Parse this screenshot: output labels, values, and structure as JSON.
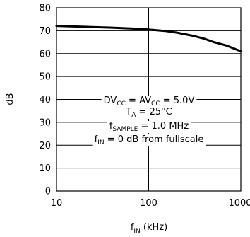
{
  "chart_data": {
    "type": "line",
    "xscale": "log",
    "xlim": [
      10,
      1000
    ],
    "ylim": [
      0,
      80
    ],
    "grid": true,
    "x_ticks": [
      "10",
      "100",
      "1000"
    ],
    "y_ticks": [
      "0",
      "10",
      "20",
      "30",
      "40",
      "50",
      "60",
      "70",
      "80"
    ],
    "xlabel": {
      "main": "f",
      "sub": "IN",
      "unit": " (kHz)"
    },
    "ylabel": "dB",
    "series": [
      {
        "x": [
          10,
          20,
          40,
          70,
          100,
          150,
          200,
          300,
          400,
          500,
          700,
          1000
        ],
        "y": [
          72.1,
          71.7,
          71.3,
          70.9,
          70.5,
          69.9,
          69.2,
          67.8,
          66.5,
          65.1,
          63.5,
          61.0
        ]
      }
    ],
    "annotations": [
      {
        "id": "dv",
        "parts": [
          {
            "t": "DV"
          },
          {
            "t": "CC",
            "sub": true
          },
          {
            "t": " = AV"
          },
          {
            "t": "CC",
            "sub": true
          },
          {
            "t": " = 5.0V"
          }
        ]
      },
      {
        "id": "ta",
        "parts": [
          {
            "t": "T"
          },
          {
            "t": "A",
            "sub": true
          },
          {
            "t": " = 25°C"
          }
        ]
      },
      {
        "id": "fs",
        "parts": [
          {
            "t": "f"
          },
          {
            "t": "SAMPLE",
            "sub": true
          },
          {
            "t": " = 1.0 MHz"
          }
        ]
      },
      {
        "id": "fin",
        "parts": [
          {
            "t": "f"
          },
          {
            "t": "IN",
            "sub": true
          },
          {
            "t": " = 0 dB from fullscale"
          }
        ]
      }
    ]
  }
}
